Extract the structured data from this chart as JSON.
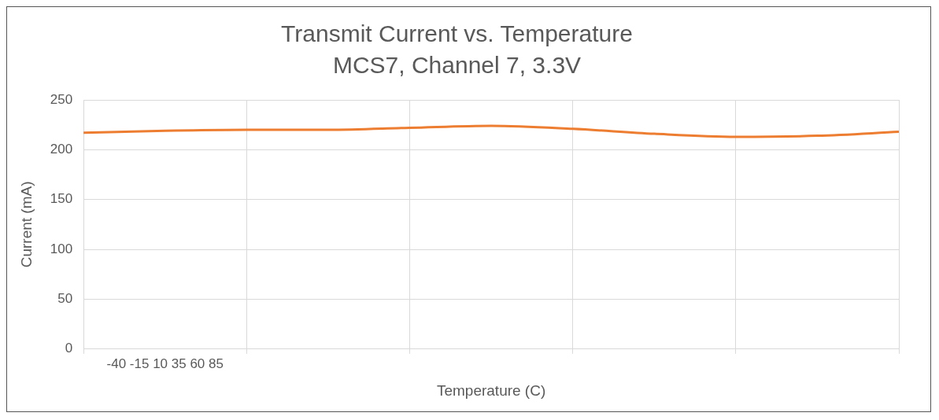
{
  "chart_data": {
    "type": "line",
    "title": "Transmit Current vs. Temperature",
    "subtitle": "MCS7, Channel 7, 3.3V",
    "xlabel": "Temperature (C)",
    "ylabel": "Current (mA)",
    "categories": [
      null,
      "-40 -15 10 35 60 85",
      null,
      null,
      null,
      null,
      null,
      null,
      null,
      null,
      null
    ],
    "series": [
      {
        "color": "#ed7d31",
        "values": [
          217,
          219,
          220,
          220,
          222,
          224,
          221,
          216,
          213,
          214,
          218
        ]
      }
    ],
    "ylim": [
      0,
      250
    ],
    "yticks": [
      0,
      50,
      100,
      150,
      200,
      250
    ],
    "grid": true,
    "legend": false,
    "marker": "none",
    "line_style": "solid"
  }
}
